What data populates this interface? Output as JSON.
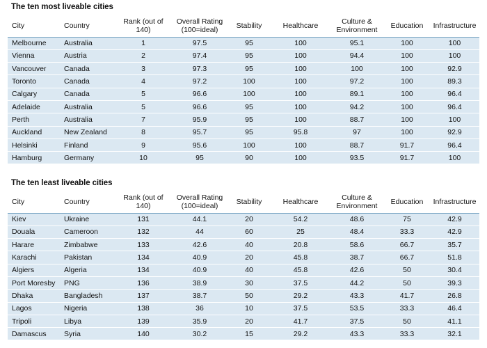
{
  "top": {
    "title": "The ten most liveable cities",
    "headers": {
      "city": "City",
      "country": "Country",
      "rank": "Rank (out of 140)",
      "overall": "Overall Rating (100=ideal)",
      "stability": "Stability",
      "healthcare": "Healthcare",
      "culture": "Culture & Environment",
      "education": "Education",
      "infrastructure": "Infrastructure"
    },
    "rows": [
      {
        "city": "Melbourne",
        "country": "Australia",
        "rank": "1",
        "overall": "97.5",
        "stability": "95",
        "healthcare": "100",
        "culture": "95.1",
        "education": "100",
        "infrastructure": "100"
      },
      {
        "city": "Vienna",
        "country": "Austria",
        "rank": "2",
        "overall": "97.4",
        "stability": "95",
        "healthcare": "100",
        "culture": "94.4",
        "education": "100",
        "infrastructure": "100"
      },
      {
        "city": "Vancouver",
        "country": "Canada",
        "rank": "3",
        "overall": "97.3",
        "stability": "95",
        "healthcare": "100",
        "culture": "100",
        "education": "100",
        "infrastructure": "92.9"
      },
      {
        "city": "Toronto",
        "country": "Canada",
        "rank": "4",
        "overall": "97.2",
        "stability": "100",
        "healthcare": "100",
        "culture": "97.2",
        "education": "100",
        "infrastructure": "89.3"
      },
      {
        "city": "Calgary",
        "country": "Canada",
        "rank": "5",
        "overall": "96.6",
        "stability": "100",
        "healthcare": "100",
        "culture": "89.1",
        "education": "100",
        "infrastructure": "96.4"
      },
      {
        "city": "Adelaide",
        "country": "Australia",
        "rank": "5",
        "overall": "96.6",
        "stability": "95",
        "healthcare": "100",
        "culture": "94.2",
        "education": "100",
        "infrastructure": "96.4"
      },
      {
        "city": "Perth",
        "country": "Australia",
        "rank": "7",
        "overall": "95.9",
        "stability": "95",
        "healthcare": "100",
        "culture": "88.7",
        "education": "100",
        "infrastructure": "100"
      },
      {
        "city": "Auckland",
        "country": "New Zealand",
        "rank": "8",
        "overall": "95.7",
        "stability": "95",
        "healthcare": "95.8",
        "culture": "97",
        "education": "100",
        "infrastructure": "92.9"
      },
      {
        "city": "Helsinki",
        "country": "Finland",
        "rank": "9",
        "overall": "95.6",
        "stability": "100",
        "healthcare": "100",
        "culture": "88.7",
        "education": "91.7",
        "infrastructure": "96.4"
      },
      {
        "city": "Hamburg",
        "country": "Germany",
        "rank": "10",
        "overall": "95",
        "stability": "90",
        "healthcare": "100",
        "culture": "93.5",
        "education": "91.7",
        "infrastructure": "100"
      }
    ]
  },
  "bottom": {
    "title": "The ten least liveable cities",
    "headers": {
      "city": "City",
      "country": "Country",
      "rank": "Rank (out of 140)",
      "overall": "Overall Rating (100=ideal)",
      "stability": "Stability",
      "healthcare": "Healthcare",
      "culture": "Culture & Environment",
      "education": "Education",
      "infrastructure": "Infrastructure"
    },
    "rows": [
      {
        "city": "Kiev",
        "country": "Ukraine",
        "rank": "131",
        "overall": "44.1",
        "stability": "20",
        "healthcare": "54.2",
        "culture": "48.6",
        "education": "75",
        "infrastructure": "42.9"
      },
      {
        "city": "Douala",
        "country": "Cameroon",
        "rank": "132",
        "overall": "44",
        "stability": "60",
        "healthcare": "25",
        "culture": "48.4",
        "education": "33.3",
        "infrastructure": "42.9"
      },
      {
        "city": "Harare",
        "country": "Zimbabwe",
        "rank": "133",
        "overall": "42.6",
        "stability": "40",
        "healthcare": "20.8",
        "culture": "58.6",
        "education": "66.7",
        "infrastructure": "35.7"
      },
      {
        "city": "Karachi",
        "country": "Pakistan",
        "rank": "134",
        "overall": "40.9",
        "stability": "20",
        "healthcare": "45.8",
        "culture": "38.7",
        "education": "66.7",
        "infrastructure": "51.8"
      },
      {
        "city": "Algiers",
        "country": "Algeria",
        "rank": "134",
        "overall": "40.9",
        "stability": "40",
        "healthcare": "45.8",
        "culture": "42.6",
        "education": "50",
        "infrastructure": "30.4"
      },
      {
        "city": "Port Moresby",
        "country": "PNG",
        "rank": "136",
        "overall": "38.9",
        "stability": "30",
        "healthcare": "37.5",
        "culture": "44.2",
        "education": "50",
        "infrastructure": "39.3"
      },
      {
        "city": "Dhaka",
        "country": "Bangladesh",
        "rank": "137",
        "overall": "38.7",
        "stability": "50",
        "healthcare": "29.2",
        "culture": "43.3",
        "education": "41.7",
        "infrastructure": "26.8"
      },
      {
        "city": "Lagos",
        "country": "Nigeria",
        "rank": "138",
        "overall": "36",
        "stability": "10",
        "healthcare": "37.5",
        "culture": "53.5",
        "education": "33.3",
        "infrastructure": "46.4"
      },
      {
        "city": "Tripoli",
        "country": "Libya",
        "rank": "139",
        "overall": "35.9",
        "stability": "20",
        "healthcare": "41.7",
        "culture": "37.5",
        "education": "50",
        "infrastructure": "41.1"
      },
      {
        "city": "Damascus",
        "country": "Syria",
        "rank": "140",
        "overall": "30.2",
        "stability": "15",
        "healthcare": "29.2",
        "culture": "43.3",
        "education": "33.3",
        "infrastructure": "32.1"
      }
    ]
  },
  "colors": {
    "row_band": "#dbe8f2",
    "header_rule": "#7aa6c4",
    "text": "#111111"
  }
}
